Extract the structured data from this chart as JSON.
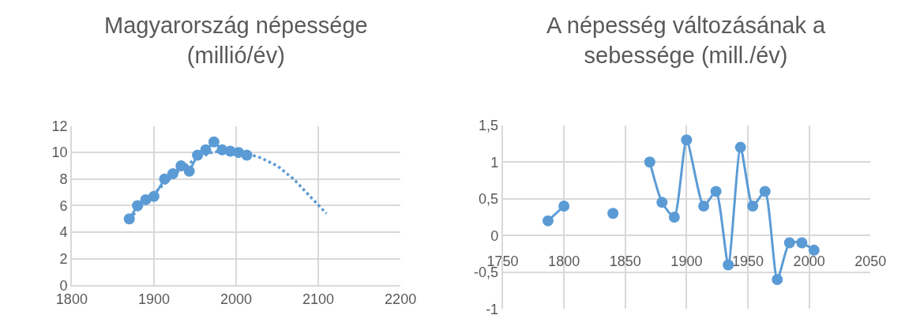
{
  "chart_data": [
    {
      "type": "line",
      "title": "Magyarország népessége\n(millió/év)",
      "xlim": [
        1800,
        2200
      ],
      "xticks": [
        1800,
        1900,
        2000,
        2100,
        2200
      ],
      "ylim": [
        0,
        12
      ],
      "yticks": [
        0,
        2,
        4,
        6,
        8,
        10,
        12
      ],
      "grid": true,
      "series": [
        {
          "color": "#5b9bd5",
          "marker": "circle",
          "line_style": "solid",
          "x": [
            1870,
            1880,
            1890,
            1900,
            1913,
            1923,
            1933,
            1943,
            1953,
            1963,
            1973,
            1983,
            1993,
            2003,
            2013
          ],
          "values": [
            5.0,
            6.0,
            6.45,
            6.7,
            8.0,
            8.4,
            9.0,
            8.6,
            9.8,
            10.2,
            10.8,
            10.2,
            10.1,
            10.0,
            9.8
          ]
        },
        {
          "color": "#5b9bd5",
          "marker": "none",
          "line_style": "dotted",
          "x": [
            1870,
            1890,
            1910,
            1930,
            1950,
            1970,
            1990,
            2010,
            2030,
            2050,
            2070,
            2090,
            2110
          ],
          "values": [
            5.0,
            6.3,
            7.5,
            8.6,
            9.5,
            10.0,
            10.2,
            10.0,
            9.6,
            9.0,
            8.0,
            6.7,
            5.4
          ]
        }
      ]
    },
    {
      "type": "line",
      "title": "A népesség változásának a\nsebessége (mill./év)",
      "xlim": [
        1750,
        2050
      ],
      "xticks": [
        1750,
        1800,
        1850,
        1900,
        1950,
        2000,
        2050
      ],
      "ylim": [
        -1,
        1.5
      ],
      "yticks": [
        -1,
        {
          "value": -0.5,
          "label": "-0,5"
        },
        0,
        {
          "value": 0.5,
          "label": "0,5"
        },
        1,
        {
          "value": 1.5,
          "label": "1,5"
        }
      ],
      "grid": true,
      "series": [
        {
          "color": "#5b9bd5",
          "marker": "circle",
          "line_style": "solid",
          "x": [
            1787,
            1800
          ],
          "values": [
            0.2,
            0.4
          ]
        },
        {
          "color": "#5b9bd5",
          "marker": "circle",
          "line_style": "solid",
          "x": [
            1840
          ],
          "values": [
            0.3
          ]
        },
        {
          "color": "#5b9bd5",
          "marker": "circle",
          "line_style": "solid",
          "x": [
            1870,
            1880,
            1890,
            1900,
            1914,
            1924,
            1934,
            1944,
            1954,
            1964,
            1974,
            1984,
            1994,
            2004
          ],
          "values": [
            1.0,
            0.45,
            0.25,
            1.3,
            0.4,
            0.6,
            -0.4,
            1.2,
            0.4,
            0.6,
            -0.6,
            -0.1,
            -0.1,
            -0.2
          ]
        }
      ]
    }
  ]
}
